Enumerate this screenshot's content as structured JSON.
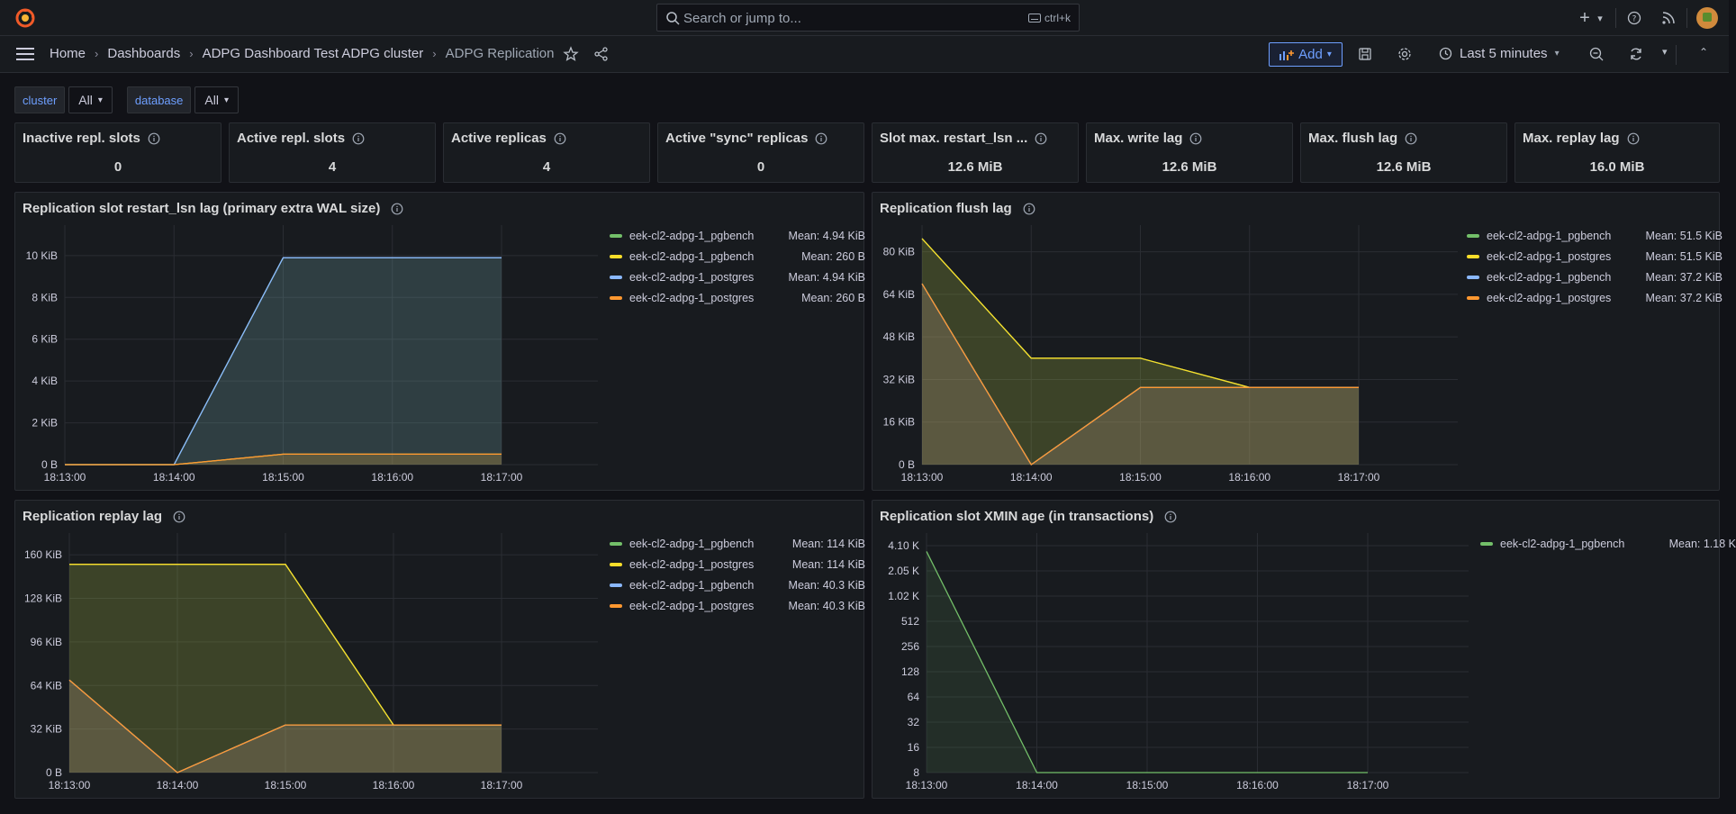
{
  "topbar": {
    "search_placeholder": "Search or jump to...",
    "search_shortcut": "ctrl+k"
  },
  "breadcrumbs": [
    "Home",
    "Dashboards",
    "ADPG Dashboard Test ADPG cluster",
    "ADPG Replication"
  ],
  "toolbar": {
    "add_label": "Add",
    "time_range": "Last 5 minutes"
  },
  "variables": [
    {
      "label": "cluster",
      "value": "All"
    },
    {
      "label": "database",
      "value": "All"
    }
  ],
  "stats": [
    {
      "title": "Inactive repl. slots",
      "value": "0"
    },
    {
      "title": "Active repl. slots",
      "value": "4"
    },
    {
      "title": "Active replicas",
      "value": "4"
    },
    {
      "title": "Active \"sync\" replicas",
      "value": "0"
    },
    {
      "title": "Slot max. restart_lsn ...",
      "value": "12.6 MiB"
    },
    {
      "title": "Max. write lag",
      "value": "12.6 MiB"
    },
    {
      "title": "Max. flush lag",
      "value": "12.6 MiB"
    },
    {
      "title": "Max. replay lag",
      "value": "16.0 MiB"
    }
  ],
  "colors": {
    "green": "#73bf69",
    "yellow": "#fade2a",
    "blue": "#8ab8ff",
    "orange": "#ff9830"
  },
  "chart_data": [
    {
      "type": "area",
      "title": "Replication slot restart_lsn lag (primary extra WAL size)",
      "x": [
        "18:13:00",
        "18:14:00",
        "18:15:00",
        "18:16:00",
        "18:17:00"
      ],
      "y_ticks": [
        "0 B",
        "2 KiB",
        "4 KiB",
        "6 KiB",
        "8 KiB",
        "10 KiB"
      ],
      "ylim": [
        0,
        11.2
      ],
      "series": [
        {
          "name": "eek-cl2-adpg-1_pgbench",
          "mean": "Mean: 4.94 KiB",
          "color": "green",
          "values": [
            0,
            0,
            9.9,
            9.9,
            9.9
          ]
        },
        {
          "name": "eek-cl2-adpg-1_pgbench",
          "mean": "Mean: 260 B",
          "color": "yellow",
          "values": [
            0,
            0,
            0.5,
            0.5,
            0.5
          ]
        },
        {
          "name": "eek-cl2-adpg-1_postgres",
          "mean": "Mean: 4.94 KiB",
          "color": "blue",
          "values": [
            0,
            0,
            9.9,
            9.9,
            9.9
          ]
        },
        {
          "name": "eek-cl2-adpg-1_postgres",
          "mean": "Mean: 260 B",
          "color": "orange",
          "values": [
            0,
            0,
            0.5,
            0.5,
            0.5
          ]
        }
      ]
    },
    {
      "type": "area",
      "title": "Replication flush lag",
      "x": [
        "18:13:00",
        "18:14:00",
        "18:15:00",
        "18:16:00",
        "18:17:00"
      ],
      "y_ticks": [
        "0 B",
        "16 KiB",
        "32 KiB",
        "48 KiB",
        "64 KiB",
        "80 KiB"
      ],
      "ylim": [
        0,
        88
      ],
      "series": [
        {
          "name": "eek-cl2-adpg-1_pgbench",
          "mean": "Mean: 51.5 KiB",
          "color": "green",
          "values": [
            85,
            40,
            40,
            29,
            29
          ]
        },
        {
          "name": "eek-cl2-adpg-1_postgres",
          "mean": "Mean: 51.5 KiB",
          "color": "yellow",
          "values": [
            85,
            40,
            40,
            29,
            29
          ]
        },
        {
          "name": "eek-cl2-adpg-1_pgbench",
          "mean": "Mean: 37.2 KiB",
          "color": "blue",
          "values": [
            68,
            0,
            29,
            29,
            29
          ]
        },
        {
          "name": "eek-cl2-adpg-1_postgres",
          "mean": "Mean: 37.2 KiB",
          "color": "orange",
          "values": [
            68,
            0,
            29,
            29,
            29
          ]
        }
      ]
    },
    {
      "type": "area",
      "title": "Replication replay lag",
      "x": [
        "18:13:00",
        "18:14:00",
        "18:15:00",
        "18:16:00",
        "18:17:00"
      ],
      "y_ticks": [
        "0 B",
        "32 KiB",
        "64 KiB",
        "96 KiB",
        "128 KiB",
        "160 KiB"
      ],
      "ylim": [
        0,
        172
      ],
      "series": [
        {
          "name": "eek-cl2-adpg-1_pgbench",
          "mean": "Mean: 114 KiB",
          "color": "green",
          "values": [
            153,
            153,
            153,
            35,
            35
          ]
        },
        {
          "name": "eek-cl2-adpg-1_postgres",
          "mean": "Mean: 114 KiB",
          "color": "yellow",
          "values": [
            153,
            153,
            153,
            35,
            35
          ]
        },
        {
          "name": "eek-cl2-adpg-1_pgbench",
          "mean": "Mean: 40.3 KiB",
          "color": "blue",
          "values": [
            68,
            0,
            35,
            35,
            35
          ]
        },
        {
          "name": "eek-cl2-adpg-1_postgres",
          "mean": "Mean: 40.3 KiB",
          "color": "orange",
          "values": [
            68,
            0,
            35,
            35,
            35
          ]
        }
      ]
    },
    {
      "type": "area",
      "title": "Replication slot XMIN age (in transactions)",
      "x": [
        "18:13:00",
        "18:14:00",
        "18:15:00",
        "18:16:00",
        "18:17:00"
      ],
      "y_ticks": [
        "8",
        "16",
        "32",
        "64",
        "128",
        "256",
        "512",
        "1.02 K",
        "2.05 K",
        "4.10 K"
      ],
      "yscale": "log2",
      "series": [
        {
          "name": "eek-cl2-adpg-1_pgbench",
          "mean": "Mean: 1.18 K",
          "color": "green",
          "values": [
            3500,
            8,
            8,
            8,
            8
          ]
        }
      ]
    }
  ]
}
